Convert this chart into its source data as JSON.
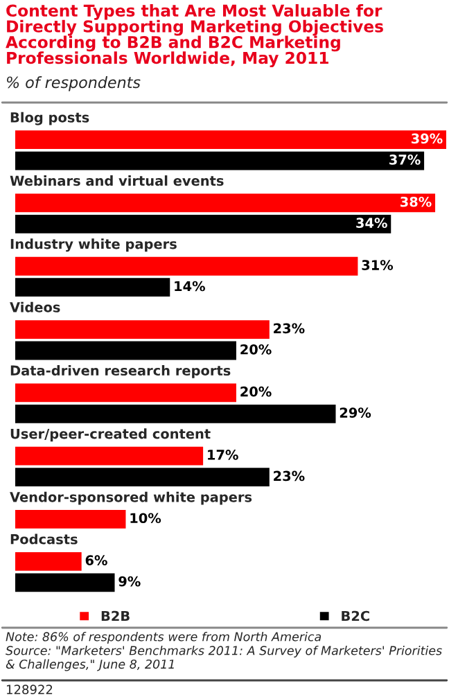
{
  "chart_data": {
    "type": "bar",
    "orientation": "horizontal",
    "title": "Content Types that Are Most Valuable for Directly Supporting Marketing Objectives According to B2B and B2C Marketing Professionals Worldwide, May 2011",
    "subtitle": "% of respondents",
    "categories": [
      "Blog posts",
      "Webinars and virtual events",
      "Industry white papers",
      "Videos",
      "Data-driven research reports",
      "User/peer-created content",
      "Vendor-sponsored white papers",
      "Podcasts"
    ],
    "series": [
      {
        "name": "B2B",
        "color": "#ff0000",
        "values": [
          39,
          38,
          31,
          23,
          20,
          17,
          10,
          6
        ],
        "value_labels": [
          "39%",
          "38%",
          "31%",
          "23%",
          "20%",
          "17%",
          "10%",
          "6%"
        ]
      },
      {
        "name": "B2C",
        "color": "#000000",
        "values": [
          37,
          34,
          14,
          20,
          29,
          23,
          null,
          9
        ],
        "value_labels": [
          "37%",
          "34%",
          "14%",
          "20%",
          "29%",
          "23%",
          null,
          "9%"
        ]
      }
    ],
    "legend": "bottom",
    "annotations": [
      "Note: 86% of respondents were from North America",
      "Source: \"Marketers' Benchmarks 2011: A Survey of Marketers' Priorities & Challenges,\" June 8, 2011",
      "128922"
    ]
  }
}
